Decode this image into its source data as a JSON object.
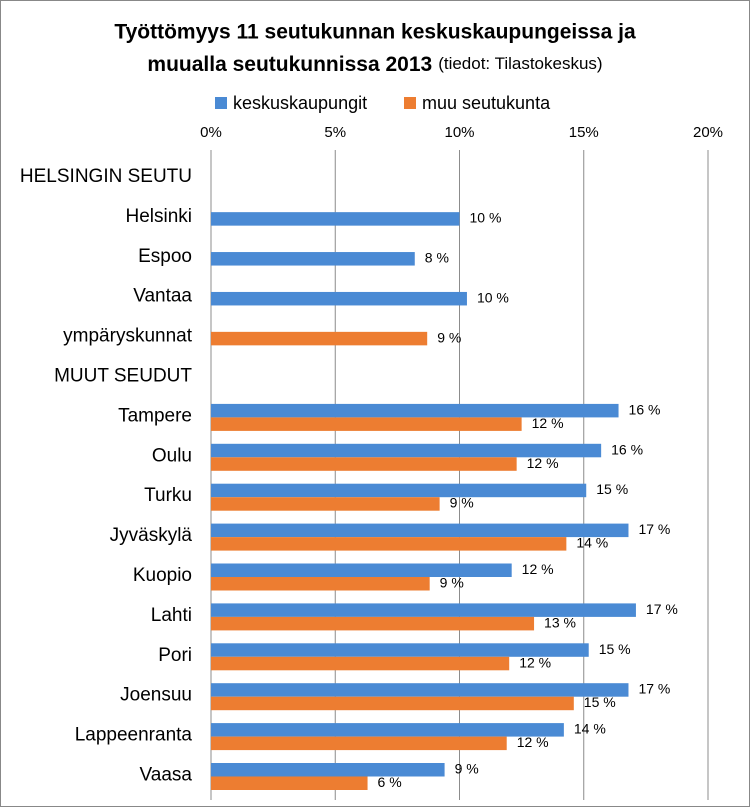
{
  "chart_data": {
    "type": "hbar",
    "title": [
      "Työttömyys 11 seutukunnan keskuskaupungeissa ja",
      "muualla seutukunnissa 2013"
    ],
    "source": "(tiedot: Tilastokeskus)",
    "categories": [
      "HELSINGIN SEUTU",
      "Helsinki",
      "Espoo",
      "Vantaa",
      "ympäryskunnat",
      "MUUT SEUDUT",
      "Tampere",
      "Oulu",
      "Turku",
      "Jyväskylä",
      "Kuopio",
      "Lahti",
      "Pori",
      "Joensuu",
      "Lappeenranta",
      "Vaasa"
    ],
    "series": [
      {
        "name": "keskuskaupungit",
        "color": "#4a8ad4",
        "values": [
          null,
          10.0,
          8.2,
          10.3,
          null,
          null,
          16.4,
          15.7,
          15.1,
          16.8,
          12.1,
          17.1,
          15.2,
          16.8,
          14.2,
          9.4
        ],
        "value_labels": [
          null,
          "10 %",
          "8 %",
          "10 %",
          null,
          null,
          "16 %",
          "16 %",
          "15 %",
          "17 %",
          "12 %",
          "17 %",
          "15 %",
          "17 %",
          "14 %",
          "9 %"
        ]
      },
      {
        "name": "muu seutukunta",
        "color": "#ed7d31",
        "values": [
          null,
          null,
          null,
          null,
          8.7,
          null,
          12.5,
          12.3,
          9.2,
          14.3,
          8.8,
          13.0,
          12.0,
          14.6,
          11.9,
          6.3
        ],
        "value_labels": [
          null,
          null,
          null,
          null,
          "9 %",
          null,
          "12 %",
          "12 %",
          "9 %",
          "14 %",
          "9 %",
          "13 %",
          "12 %",
          "15 %",
          "12 %",
          "6 %"
        ]
      }
    ],
    "xlim": [
      0,
      20
    ],
    "xticks": [
      {
        "value": 0,
        "label": "0%"
      },
      {
        "value": 5,
        "label": "5%"
      },
      {
        "value": 10,
        "label": "10%"
      },
      {
        "value": 15,
        "label": "15%"
      },
      {
        "value": 20,
        "label": "20%"
      }
    ],
    "grid": true,
    "legend": "top"
  }
}
